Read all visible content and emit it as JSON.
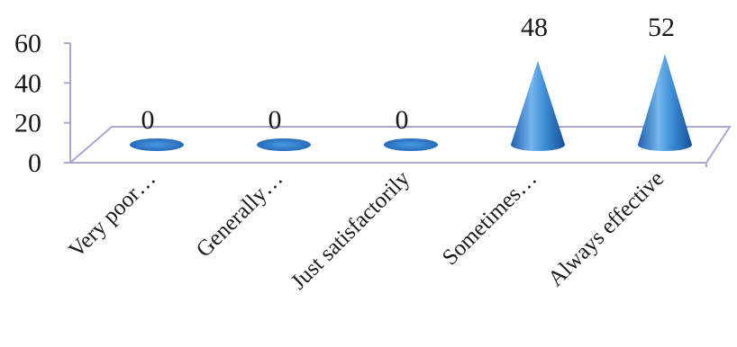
{
  "chart_data": {
    "type": "bar",
    "bar_shape": "cone",
    "style": "3d",
    "categories": [
      "Very poor…",
      "Generally…",
      "Just satisfactorily",
      "Sometimes…",
      "Always effective"
    ],
    "values": [
      0,
      0,
      0,
      48,
      52
    ],
    "data_labels": [
      "0",
      "0",
      "0",
      "48",
      "52"
    ],
    "y_ticks": [
      "0",
      "20",
      "40",
      "60"
    ],
    "ylim": [
      0,
      60
    ],
    "title": "",
    "xlabel": "",
    "ylabel": "",
    "grid": false,
    "legend": "none",
    "bar_color": "#3d8fd6",
    "axis_color": "#a9a6cf"
  }
}
